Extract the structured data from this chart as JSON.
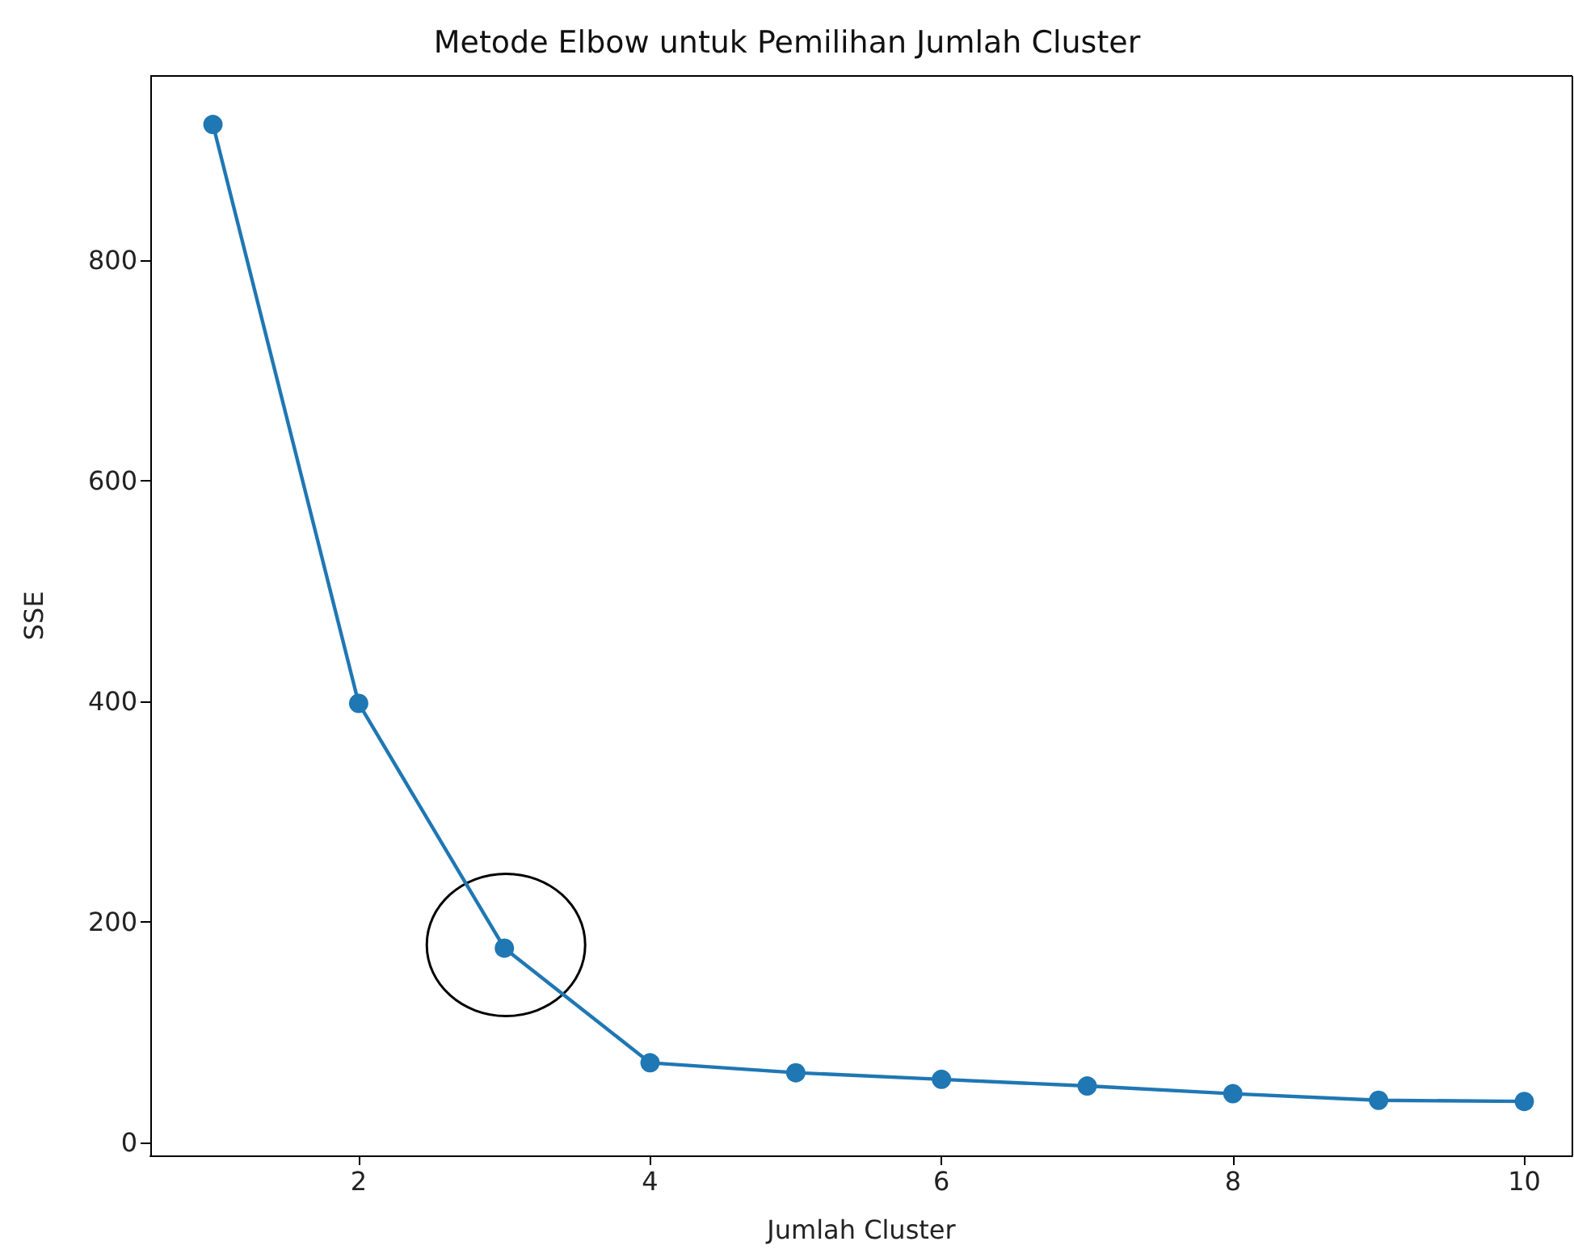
{
  "chart_data": {
    "type": "line",
    "title": "Metode Elbow untuk Pemilihan Jumlah Cluster",
    "xlabel": "Jumlah Cluster",
    "ylabel": "SSE",
    "x": [
      1,
      2,
      3,
      4,
      5,
      6,
      7,
      8,
      9,
      10
    ],
    "series": [
      {
        "color": "#1f77b4",
        "values": [
          923,
          398,
          176,
          72,
          63,
          57,
          51,
          44,
          38,
          37
        ]
      }
    ],
    "xlim": [
      0.57,
      10.33
    ],
    "xticks": [
      2,
      4,
      6,
      8,
      10
    ],
    "ylim": [
      -12,
      967
    ],
    "yticks": [
      0,
      200,
      400,
      600,
      800
    ],
    "marker": "circle",
    "line_style": "solid",
    "grid": false
  }
}
